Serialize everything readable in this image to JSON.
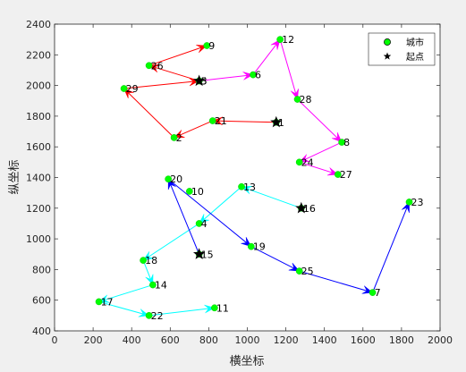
{
  "chart_data": {
    "type": "scatter",
    "title": "",
    "xlabel": "横坐标",
    "ylabel": "纵坐标",
    "xlim": [
      0,
      2000
    ],
    "ylim": [
      400,
      2400
    ],
    "xticks": [
      "0",
      "200",
      "400",
      "600",
      "800",
      "1000",
      "1200",
      "1400",
      "1600",
      "1800",
      "2000"
    ],
    "yticks": [
      "400",
      "600",
      "800",
      "1000",
      "1200",
      "1400",
      "1600",
      "1800",
      "2000",
      "2200",
      "2400"
    ],
    "legend": {
      "placement": "top-right",
      "entries": [
        {
          "label": "城市",
          "marker": "circle",
          "color": "#00ff00"
        },
        {
          "label": "起点",
          "marker": "star",
          "color": "#000000"
        }
      ]
    },
    "cities": [
      {
        "id": "1",
        "x": 1150,
        "y": 1760
      },
      {
        "id": "2",
        "x": 620,
        "y": 1660
      },
      {
        "id": "3",
        "x": 750,
        "y": 2030
      },
      {
        "id": "4",
        "x": 750,
        "y": 1100
      },
      {
        "id": "5",
        "x": 750,
        "y": 2030
      },
      {
        "id": "6",
        "x": 1030,
        "y": 2070
      },
      {
        "id": "7",
        "x": 1650,
        "y": 650
      },
      {
        "id": "8",
        "x": 1490,
        "y": 1630
      },
      {
        "id": "9",
        "x": 790,
        "y": 2260
      },
      {
        "id": "10",
        "x": 700,
        "y": 1310
      },
      {
        "id": "11",
        "x": 830,
        "y": 550
      },
      {
        "id": "12",
        "x": 1170,
        "y": 2300
      },
      {
        "id": "13",
        "x": 970,
        "y": 1340
      },
      {
        "id": "14",
        "x": 510,
        "y": 700
      },
      {
        "id": "15",
        "x": 750,
        "y": 900
      },
      {
        "id": "16",
        "x": 1280,
        "y": 1200
      },
      {
        "id": "17",
        "x": 230,
        "y": 590
      },
      {
        "id": "18",
        "x": 460,
        "y": 860
      },
      {
        "id": "19",
        "x": 1020,
        "y": 950
      },
      {
        "id": "20",
        "x": 590,
        "y": 1390
      },
      {
        "id": "21",
        "x": 820,
        "y": 1770
      },
      {
        "id": "22",
        "x": 490,
        "y": 500
      },
      {
        "id": "23",
        "x": 1840,
        "y": 1240
      },
      {
        "id": "24",
        "x": 1270,
        "y": 1500
      },
      {
        "id": "25",
        "x": 1270,
        "y": 790
      },
      {
        "id": "26",
        "x": 490,
        "y": 2130
      },
      {
        "id": "27",
        "x": 1470,
        "y": 1420
      },
      {
        "id": "28",
        "x": 1260,
        "y": 1910
      },
      {
        "id": "29",
        "x": 360,
        "y": 1980
      }
    ],
    "start_points": [
      {
        "x": 750,
        "y": 2030
      },
      {
        "x": 1150,
        "y": 1760
      },
      {
        "x": 1280,
        "y": 1200
      },
      {
        "x": 750,
        "y": 900
      }
    ],
    "series": [
      {
        "color": "#ff0000",
        "route": [
          "1",
          "21",
          "2",
          "29",
          "3",
          "26",
          "9"
        ]
      },
      {
        "color": "#ff00ff",
        "route": [
          "5",
          "6",
          "12",
          "28",
          "8",
          "24",
          "27"
        ]
      },
      {
        "color": "#00ffff",
        "route": [
          "16",
          "13",
          "4",
          "18",
          "14",
          "17",
          "22",
          "11"
        ]
      },
      {
        "color": "#0000ff",
        "route": [
          "15",
          "20",
          "19",
          "25",
          "7",
          "23"
        ]
      }
    ]
  }
}
